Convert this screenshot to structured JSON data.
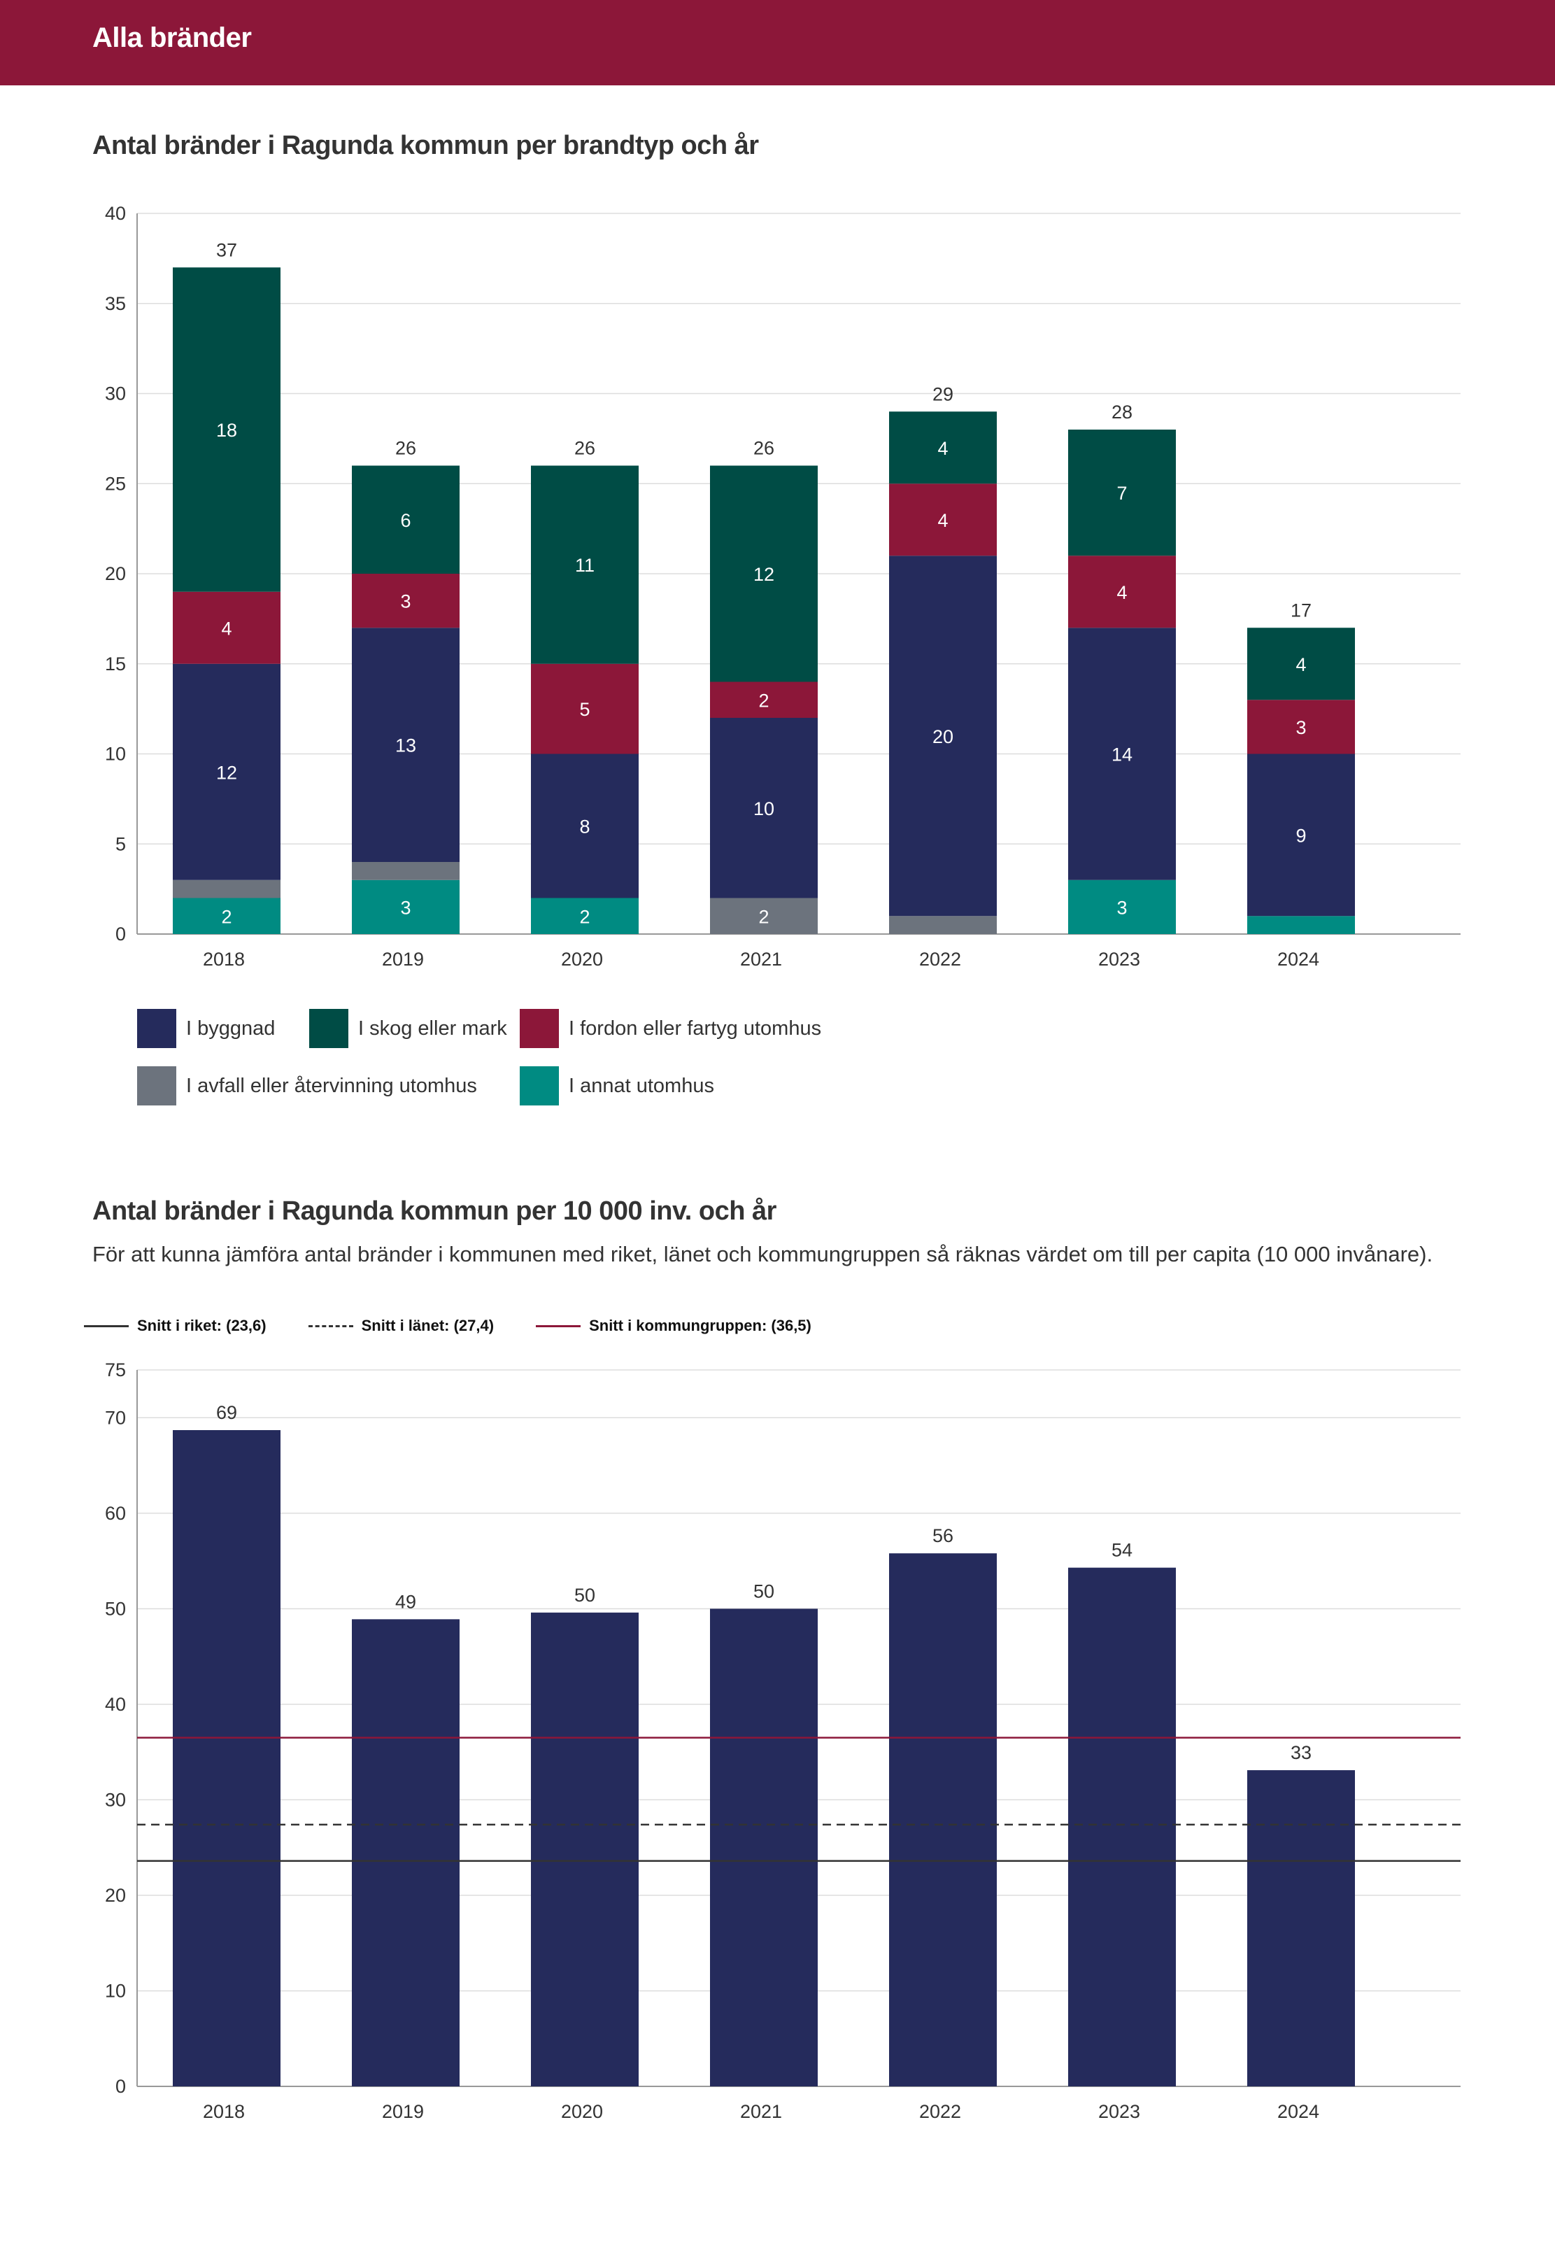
{
  "header": {
    "title": "Alla bränder"
  },
  "chart1": {
    "title": "Antal bränder i Ragunda kommun per brandtyp och år"
  },
  "chart2": {
    "title": "Antal bränder i Ragunda kommun per 10 000 inv. och år",
    "subtitle": "För att kunna jämföra antal bränder i kommunen med riket, länet och kommungruppen så räknas värdet om till per capita (10 000 invånare)."
  },
  "legend1": [
    {
      "label": "I byggnad",
      "color": "#252b5c"
    },
    {
      "label": "I skog eller mark",
      "color": "#004c45"
    },
    {
      "label": "I fordon eller fartyg utomhus",
      "color": "#8c1739"
    },
    {
      "label": "I avfall eller återvinning utomhus",
      "color": "#6c737d"
    },
    {
      "label": "I annat utomhus",
      "color": "#008b82"
    }
  ],
  "legend2": [
    {
      "label": "Snitt i riket: (23,6)",
      "style": "solid",
      "color": "#333333"
    },
    {
      "label": "Snitt i länet: (27,4)",
      "style": "dashed",
      "color": "#333333"
    },
    {
      "label": "Snitt i kommungruppen: (36,5)",
      "style": "solid",
      "color": "#8c1739"
    }
  ],
  "chart_data": [
    {
      "type": "bar",
      "stacked": true,
      "title": "Antal bränder i Ragunda kommun per brandtyp och år",
      "categories": [
        "2018",
        "2019",
        "2020",
        "2021",
        "2022",
        "2023",
        "2024"
      ],
      "ylim": [
        0,
        40
      ],
      "yticks": [
        0,
        5,
        10,
        15,
        20,
        25,
        30,
        35,
        40
      ],
      "grid": true,
      "series": [
        {
          "name": "I annat utomhus",
          "color": "#008b82",
          "values": [
            2,
            3,
            2,
            0,
            0,
            3,
            1
          ]
        },
        {
          "name": "I avfall eller återvinning utomhus",
          "color": "#6c737d",
          "values": [
            1,
            1,
            0,
            2,
            1,
            0,
            0
          ]
        },
        {
          "name": "I byggnad",
          "color": "#252b5c",
          "values": [
            12,
            13,
            8,
            10,
            20,
            14,
            9
          ]
        },
        {
          "name": "I fordon eller fartyg utomhus",
          "color": "#8c1739",
          "values": [
            4,
            3,
            5,
            2,
            4,
            4,
            3
          ]
        },
        {
          "name": "I skog eller mark",
          "color": "#004c45",
          "values": [
            18,
            6,
            11,
            12,
            4,
            7,
            4
          ]
        }
      ],
      "segment_labels_shown": [
        [
          "2",
          "",
          "12",
          "4",
          "18"
        ],
        [
          "3",
          "",
          "13",
          "3",
          "6"
        ],
        [
          "2",
          "",
          "8",
          "5",
          "11"
        ],
        [
          "",
          "2",
          "10",
          "2",
          "12"
        ],
        [
          "",
          "",
          "20",
          "4",
          "4"
        ],
        [
          "3",
          "",
          "14",
          "4",
          "7"
        ],
        [
          "",
          "",
          "9",
          "3",
          "4"
        ]
      ],
      "totals": [
        "37",
        "26",
        "26",
        "26",
        "29",
        "28",
        "17"
      ]
    },
    {
      "type": "bar",
      "title": "Antal bränder i Ragunda kommun per 10 000 inv. och år",
      "categories": [
        "2018",
        "2019",
        "2020",
        "2021",
        "2022",
        "2023",
        "2024"
      ],
      "values": [
        68.7,
        48.9,
        49.6,
        50.0,
        55.8,
        54.3,
        33.1
      ],
      "value_labels": [
        "69",
        "49",
        "50",
        "50",
        "56",
        "54",
        "33"
      ],
      "bar_color": "#252b5c",
      "ylim": [
        0,
        75
      ],
      "yticks": [
        0,
        10,
        20,
        30,
        40,
        50,
        60,
        70,
        75
      ],
      "grid": true,
      "reference_lines": [
        {
          "name": "Snitt i riket",
          "value": 23.6,
          "style": "solid",
          "color": "#333333"
        },
        {
          "name": "Snitt i länet",
          "value": 27.4,
          "style": "dashed",
          "color": "#333333"
        },
        {
          "name": "Snitt i kommungruppen",
          "value": 36.5,
          "style": "solid",
          "color": "#8c1739"
        }
      ]
    }
  ]
}
